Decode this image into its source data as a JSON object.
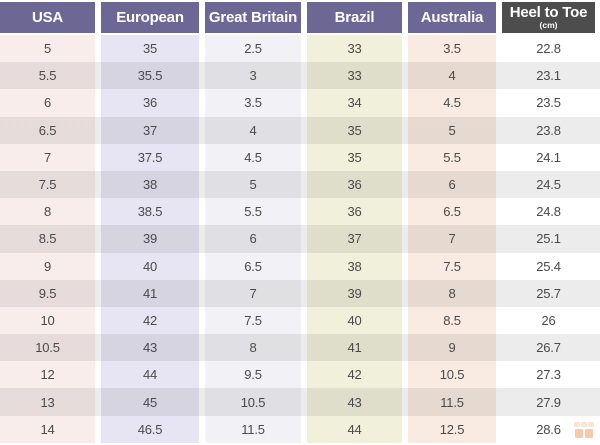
{
  "header": {
    "cells": [
      {
        "label": "USA"
      },
      {
        "label": "European"
      },
      {
        "label": "Great Britain"
      },
      {
        "label": "Brazil"
      },
      {
        "label": "Australia"
      },
      {
        "label": "Heel to Toe",
        "sublabel": "(cm)"
      }
    ]
  },
  "chart_data": {
    "type": "table",
    "columns": [
      "USA",
      "European",
      "Great Britain",
      "Brazil",
      "Australia",
      "Heel to Toe (cm)"
    ],
    "rows": [
      [
        "5",
        "35",
        "2.5",
        "33",
        "3.5",
        "22.8"
      ],
      [
        "5.5",
        "35.5",
        "3",
        "33",
        "4",
        "23.1"
      ],
      [
        "6",
        "36",
        "3.5",
        "34",
        "4.5",
        "23.5"
      ],
      [
        "6.5",
        "37",
        "4",
        "35",
        "5",
        "23.8"
      ],
      [
        "7",
        "37.5",
        "4.5",
        "35",
        "5.5",
        "24.1"
      ],
      [
        "7.5",
        "38",
        "5",
        "36",
        "6",
        "24.5"
      ],
      [
        "8",
        "38.5",
        "5.5",
        "36",
        "6.5",
        "24.8"
      ],
      [
        "8.5",
        "39",
        "6",
        "37",
        "7",
        "25.1"
      ],
      [
        "9",
        "40",
        "6.5",
        "38",
        "7.5",
        "25.4"
      ],
      [
        "9.5",
        "41",
        "7",
        "39",
        "8",
        "25.7"
      ],
      [
        "10",
        "42",
        "7.5",
        "40",
        "8.5",
        "26"
      ],
      [
        "10.5",
        "43",
        "8",
        "41",
        "9",
        "26.7"
      ],
      [
        "12",
        "44",
        "9.5",
        "42",
        "10.5",
        "27.3"
      ],
      [
        "13",
        "45",
        "10.5",
        "43",
        "11.5",
        "27.9"
      ],
      [
        "14",
        "46.5",
        "11.5",
        "44",
        "12.5",
        "28.6"
      ]
    ],
    "layout": {
      "striped_rows": true,
      "stripe_on": "even",
      "grid": false
    }
  },
  "colors": {
    "header_bg": "#6d6795",
    "header_last_bg": "#4d4d4d",
    "header_text": "#ffffff",
    "cell_text": "#4a4a4a",
    "column_tints": [
      "#f9edeb",
      "#e7e5f3",
      "#f2f2f6",
      "#f1f0da",
      "#f9ebe1",
      "#ffffff"
    ],
    "stripe": "#ececec",
    "watermark_orange": "#f08a3f"
  }
}
